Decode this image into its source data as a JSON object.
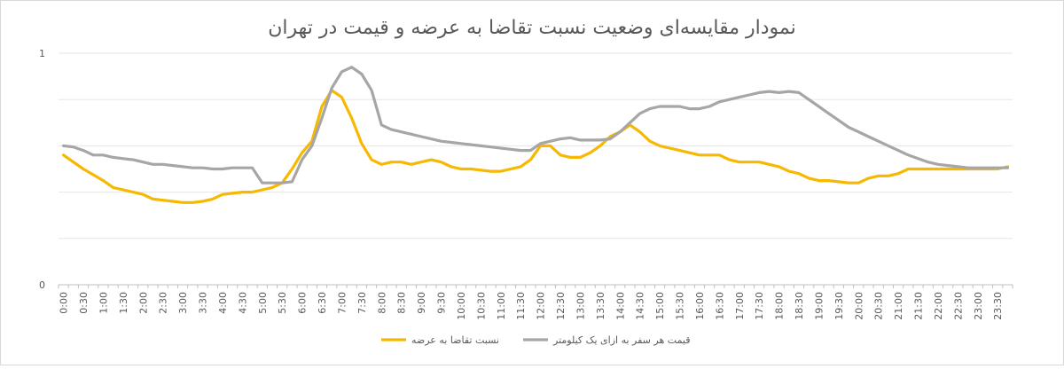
{
  "chart_data": {
    "type": "line",
    "title": "نمودار مقایسه‌ای وضعیت نسبت تقاضا به عرضه و قیمت در تهران",
    "xlabel": "",
    "ylabel": "",
    "ylim": [
      0,
      1
    ],
    "y_ticks": [
      "0",
      "1"
    ],
    "grid": true,
    "legend_position": "bottom",
    "x": [
      "0:00",
      "0:15",
      "0:30",
      "0:45",
      "1:00",
      "1:15",
      "1:30",
      "1:45",
      "2:00",
      "2:15",
      "2:30",
      "2:45",
      "3:00",
      "3:15",
      "3:30",
      "3:45",
      "4:00",
      "4:15",
      "4:30",
      "4:45",
      "5:00",
      "5:15",
      "5:30",
      "5:45",
      "6:00",
      "6:15",
      "6:30",
      "6:45",
      "7:00",
      "7:15",
      "7:30",
      "7:45",
      "8:00",
      "8:15",
      "8:30",
      "8:45",
      "9:00",
      "9:15",
      "9:30",
      "9:45",
      "10:00",
      "10:15",
      "10:30",
      "10:45",
      "11:00",
      "11:15",
      "11:30",
      "11:45",
      "12:00",
      "12:15",
      "12:30",
      "12:45",
      "13:00",
      "13:15",
      "13:30",
      "13:45",
      "14:00",
      "14:15",
      "14:30",
      "14:45",
      "15:00",
      "15:15",
      "15:30",
      "15:45",
      "16:00",
      "16:15",
      "16:30",
      "16:45",
      "17:00",
      "17:15",
      "17:30",
      "17:45",
      "18:00",
      "18:15",
      "18:30",
      "18:45",
      "19:00",
      "19:15",
      "19:30",
      "19:45",
      "20:00",
      "20:15",
      "20:30",
      "20:45",
      "21:00",
      "21:15",
      "21:30",
      "21:45",
      "22:00",
      "22:15",
      "22:30",
      "22:45",
      "23:00",
      "23:15",
      "23:30",
      "23:45"
    ],
    "x_tick_labels": [
      "0:00",
      "0:30",
      "1:00",
      "1:30",
      "2:00",
      "2:30",
      "3:00",
      "3:30",
      "4:00",
      "4:30",
      "5:00",
      "5:30",
      "6:00",
      "6:30",
      "7:00",
      "7:30",
      "8:00",
      "8:30",
      "9:00",
      "9:30",
      "10:00",
      "10:30",
      "11:00",
      "11:30",
      "12:00",
      "12:30",
      "13:00",
      "13:30",
      "14:00",
      "14:30",
      "15:00",
      "15:30",
      "16:00",
      "16:30",
      "17:00",
      "17:30",
      "18:00",
      "18:30",
      "19:00",
      "19:30",
      "20:00",
      "20:30",
      "21:00",
      "21:30",
      "22:00",
      "22:30",
      "23:00",
      "23:30"
    ],
    "series": [
      {
        "name": "نسبت تقاضا به عرضه",
        "color": "#F6B800",
        "values": [
          0.56,
          0.53,
          0.5,
          0.475,
          0.45,
          0.42,
          0.41,
          0.4,
          0.39,
          0.37,
          0.365,
          0.36,
          0.355,
          0.355,
          0.36,
          0.37,
          0.39,
          0.395,
          0.4,
          0.4,
          0.41,
          0.42,
          0.44,
          0.5,
          0.57,
          0.62,
          0.77,
          0.84,
          0.81,
          0.72,
          0.61,
          0.54,
          0.52,
          0.53,
          0.53,
          0.52,
          0.53,
          0.54,
          0.53,
          0.51,
          0.5,
          0.5,
          0.495,
          0.49,
          0.49,
          0.5,
          0.51,
          0.54,
          0.6,
          0.6,
          0.56,
          0.55,
          0.55,
          0.57,
          0.6,
          0.64,
          0.66,
          0.69,
          0.66,
          0.62,
          0.6,
          0.59,
          0.58,
          0.57,
          0.56,
          0.56,
          0.56,
          0.54,
          0.53,
          0.53,
          0.53,
          0.52,
          0.51,
          0.49,
          0.48,
          0.46,
          0.45,
          0.45,
          0.445,
          0.44,
          0.44,
          0.46,
          0.47,
          0.47,
          0.48,
          0.5,
          0.5,
          0.5,
          0.5,
          0.5,
          0.5,
          0.5,
          0.5,
          0.5,
          0.5,
          0.51
        ]
      },
      {
        "name": "قیمت هر سفر به ازای یک کیلومتر",
        "color": "#A6A6A6",
        "values": [
          0.6,
          0.595,
          0.58,
          0.56,
          0.56,
          0.55,
          0.545,
          0.54,
          0.53,
          0.52,
          0.52,
          0.515,
          0.51,
          0.505,
          0.505,
          0.5,
          0.5,
          0.505,
          0.505,
          0.505,
          0.44,
          0.44,
          0.44,
          0.445,
          0.54,
          0.6,
          0.72,
          0.85,
          0.92,
          0.94,
          0.91,
          0.84,
          0.69,
          0.67,
          0.66,
          0.65,
          0.64,
          0.63,
          0.62,
          0.615,
          0.61,
          0.605,
          0.6,
          0.595,
          0.59,
          0.585,
          0.58,
          0.58,
          0.61,
          0.62,
          0.63,
          0.635,
          0.625,
          0.625,
          0.625,
          0.63,
          0.66,
          0.7,
          0.74,
          0.76,
          0.77,
          0.77,
          0.77,
          0.76,
          0.76,
          0.77,
          0.79,
          0.8,
          0.81,
          0.82,
          0.83,
          0.835,
          0.83,
          0.835,
          0.83,
          0.8,
          0.77,
          0.74,
          0.71,
          0.68,
          0.66,
          0.64,
          0.62,
          0.6,
          0.58,
          0.56,
          0.545,
          0.53,
          0.52,
          0.515,
          0.51,
          0.505,
          0.505,
          0.505,
          0.505,
          0.505
        ]
      }
    ]
  }
}
